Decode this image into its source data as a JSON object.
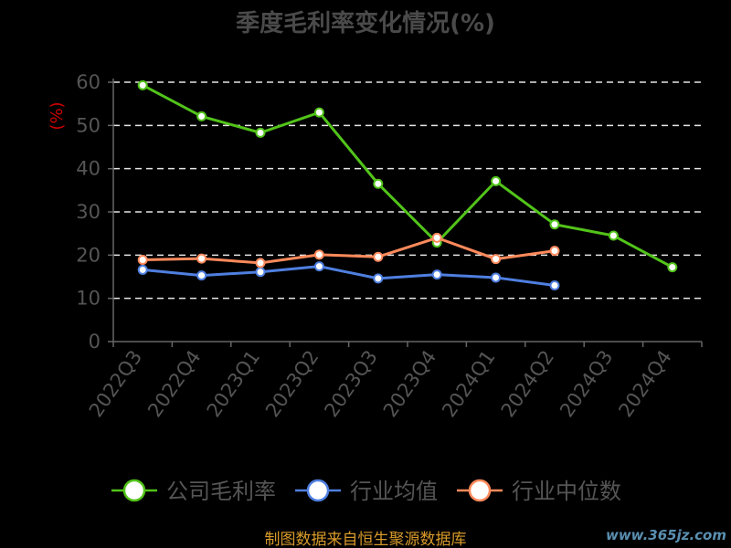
{
  "chart_data": {
    "type": "line",
    "title": "季度毛利率变化情况(%)",
    "ylabel": "(%)",
    "ylim": [
      0,
      60
    ],
    "yticks": [
      0,
      10,
      20,
      30,
      40,
      50,
      60
    ],
    "grid": true,
    "legend_position": "bottom",
    "categories": [
      "2022Q3",
      "2022Q4",
      "2023Q1",
      "2023Q2",
      "2023Q3",
      "2023Q4",
      "2024Q1",
      "2024Q2",
      "2024Q3",
      "2024Q4"
    ],
    "series": [
      {
        "name": "公司毛利率",
        "color": "#52c41a",
        "values": [
          59.3,
          52.1,
          48.3,
          53.0,
          36.5,
          22.9,
          37.1,
          27.1,
          24.5,
          17.2
        ]
      },
      {
        "name": "行业均值",
        "color": "#4f7fe0",
        "values": [
          16.6,
          15.3,
          16.1,
          17.4,
          14.6,
          15.5,
          14.8,
          13.0,
          null,
          null
        ]
      },
      {
        "name": "行业中位数",
        "color": "#ff8a5c",
        "values": [
          18.9,
          19.2,
          18.2,
          20.1,
          19.6,
          24.0,
          19.1,
          21.0,
          null,
          null
        ]
      }
    ]
  },
  "footer": {
    "source": "制图数据来自恒生聚源数据库",
    "watermark": "www.365jz.com"
  }
}
